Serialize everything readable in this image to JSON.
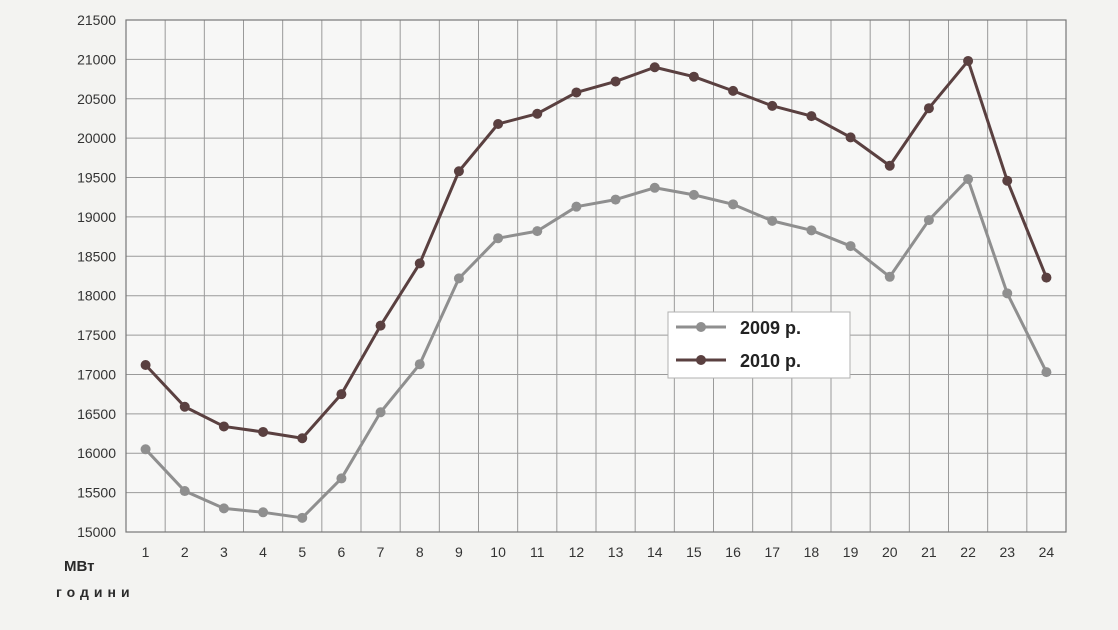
{
  "chart_data": {
    "type": "line",
    "title": "",
    "ylabel": "МВт",
    "xlabel": "години",
    "ylim": [
      15000,
      21500
    ],
    "yticks": [
      15000,
      15500,
      16000,
      16500,
      17000,
      17500,
      18000,
      18500,
      19000,
      19500,
      20000,
      20500,
      21000,
      21500
    ],
    "categories": [
      "1",
      "2",
      "3",
      "4",
      "5",
      "6",
      "7",
      "8",
      "9",
      "10",
      "11",
      "12",
      "13",
      "14",
      "15",
      "16",
      "17",
      "18",
      "19",
      "20",
      "21",
      "22",
      "23",
      "24"
    ],
    "grid": true,
    "legend_position": "center-right",
    "series": [
      {
        "name": "2009 р.",
        "color": "#8f8f8f",
        "values": [
          16050,
          15520,
          15300,
          15250,
          15180,
          15680,
          16520,
          17130,
          18220,
          18730,
          18820,
          19130,
          19220,
          19370,
          19280,
          19160,
          18950,
          18830,
          18630,
          18240,
          18960,
          19480,
          18030,
          17030
        ]
      },
      {
        "name": "2010 р.",
        "color": "#5a4040",
        "values": [
          17120,
          16590,
          16340,
          16270,
          16190,
          16750,
          17620,
          18410,
          19580,
          20180,
          20310,
          20580,
          20720,
          20900,
          20780,
          20600,
          20410,
          20280,
          20010,
          19650,
          20380,
          20980,
          19460,
          18230
        ]
      }
    ]
  }
}
